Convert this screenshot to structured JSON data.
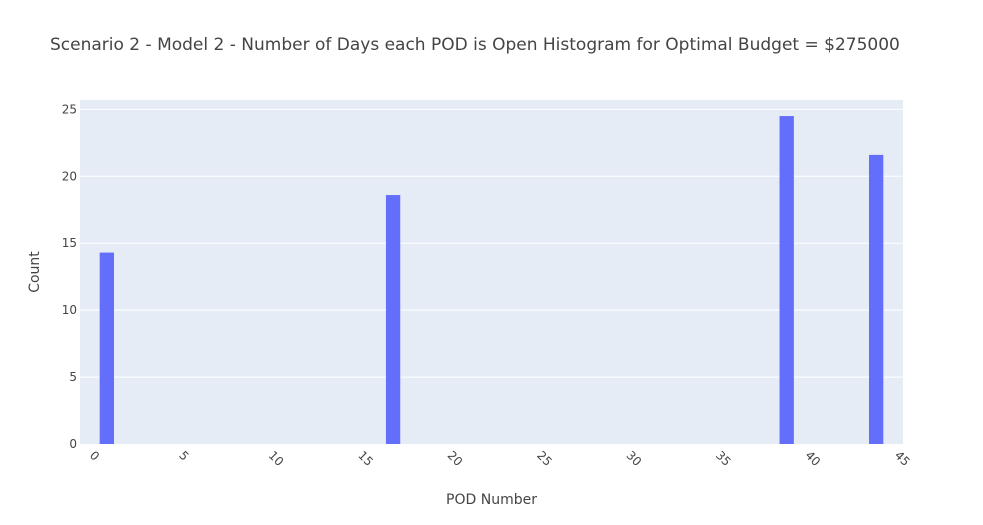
{
  "chart_data": {
    "type": "bar",
    "title": "Scenario 2 - Model 2 - Number of Days each POD is Open Histogram for Optimal Budget = $275000",
    "xlabel": "POD Number",
    "ylabel": "Count",
    "xlim": [
      -0.5,
      45.5
    ],
    "ylim": [
      0,
      25.7
    ],
    "x_ticks": [
      0,
      5,
      10,
      15,
      20,
      25,
      30,
      35,
      40,
      45
    ],
    "y_ticks": [
      0,
      5,
      10,
      15,
      20,
      25
    ],
    "bar_width": 0.8,
    "series": [
      {
        "x": [
          1,
          17,
          39,
          44
        ],
        "values": [
          14.3,
          18.6,
          24.5,
          21.6
        ]
      }
    ],
    "grid": true,
    "colors": {
      "bar": "#636efa",
      "plot_bg": "#e5ecf6",
      "grid": "#ffffff"
    }
  }
}
